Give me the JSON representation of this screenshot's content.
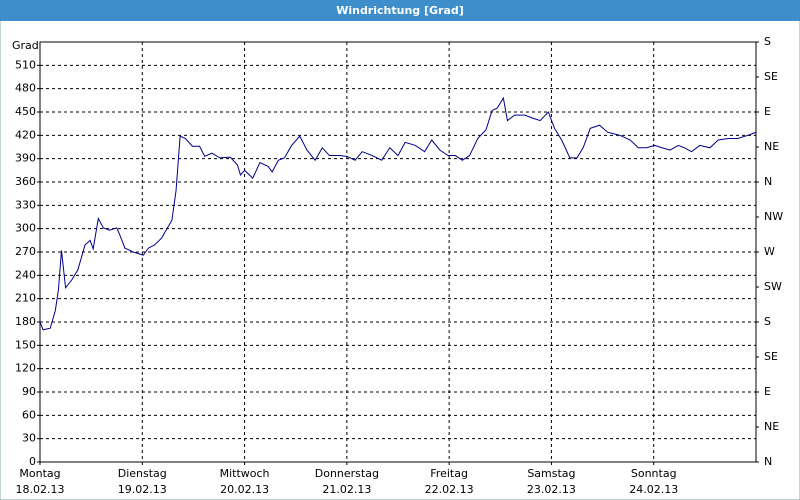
{
  "chart_data": {
    "type": "line",
    "title": "Windrichtung [Grad]",
    "ylabel": "Grad",
    "xlim": [
      0,
      7
    ],
    "xticks": [
      {
        "value": 0,
        "label": "Montag"
      },
      {
        "value": 1,
        "label": "Dienstag"
      },
      {
        "value": 2,
        "label": "Mittwoch"
      },
      {
        "value": 3,
        "label": "Donnerstag"
      },
      {
        "value": 4,
        "label": "Freitag"
      },
      {
        "value": 5,
        "label": "Samstag"
      },
      {
        "value": 6,
        "label": "Sonntag"
      }
    ],
    "xtick_dates": [
      "18.02.13",
      "19.02.13",
      "20.02.13",
      "21.02.13",
      "22.02.13",
      "23.02.13",
      "24.02.13"
    ],
    "ylim": [
      0,
      540
    ],
    "yticks": [
      0,
      30,
      60,
      90,
      120,
      150,
      180,
      210,
      240,
      270,
      300,
      330,
      360,
      390,
      420,
      450,
      480,
      510
    ],
    "y2lim": [
      0,
      540
    ],
    "y2ticks": [
      {
        "value": 0,
        "label": "N"
      },
      {
        "value": 45,
        "label": "NE"
      },
      {
        "value": 90,
        "label": "E"
      },
      {
        "value": 135,
        "label": "SE"
      },
      {
        "value": 180,
        "label": "S"
      },
      {
        "value": 225,
        "label": "SW"
      },
      {
        "value": 270,
        "label": "W"
      },
      {
        "value": 315,
        "label": "NW"
      },
      {
        "value": 360,
        "label": "N"
      },
      {
        "value": 405,
        "label": "NE"
      },
      {
        "value": 450,
        "label": "E"
      },
      {
        "value": 495,
        "label": "SE"
      },
      {
        "value": 540,
        "label": "S"
      }
    ],
    "grid": true,
    "color": "#00008b",
    "x": [
      0,
      0.03,
      0.1,
      0.15,
      0.18,
      0.21,
      0.25,
      0.31,
      0.37,
      0.44,
      0.49,
      0.52,
      0.57,
      0.62,
      0.68,
      0.75,
      0.78,
      0.83,
      0.91,
      1.01,
      1.06,
      1.12,
      1.19,
      1.22,
      1.29,
      1.33,
      1.37,
      1.42,
      1.49,
      1.56,
      1.61,
      1.68,
      1.76,
      1.86,
      1.93,
      1.96,
      2.0,
      2.08,
      2.15,
      2.23,
      2.27,
      2.33,
      2.39,
      2.46,
      2.54,
      2.61,
      2.69,
      2.76,
      2.83,
      2.93,
      3.0,
      3.08,
      3.15,
      3.25,
      3.34,
      3.42,
      3.5,
      3.57,
      3.67,
      3.76,
      3.83,
      3.91,
      3.99,
      4.06,
      4.13,
      4.2,
      4.28,
      4.36,
      4.42,
      4.47,
      4.53,
      4.57,
      4.64,
      4.74,
      4.82,
      4.89,
      4.97,
      5.03,
      5.1,
      5.18,
      5.25,
      5.31,
      5.38,
      5.47,
      5.55,
      5.67,
      5.77,
      5.85,
      5.93,
      6.01,
      6.08,
      6.16,
      6.24,
      6.3,
      6.37,
      6.45,
      6.55,
      6.63,
      6.73,
      6.82,
      6.92,
      7.0
    ],
    "values": [
      180,
      170,
      172,
      195,
      221,
      272,
      224,
      234,
      247,
      279,
      285,
      274,
      313,
      301,
      298,
      301,
      292,
      275,
      270,
      266,
      275,
      279,
      288,
      295,
      311,
      349,
      419,
      416,
      406,
      406,
      393,
      397,
      391,
      392,
      382,
      369,
      375,
      365,
      385,
      380,
      373,
      388,
      391,
      407,
      419,
      401,
      388,
      404,
      394,
      394,
      393,
      388,
      399,
      394,
      388,
      404,
      394,
      411,
      407,
      399,
      414,
      401,
      394,
      394,
      388,
      394,
      416,
      427,
      452,
      455,
      468,
      439,
      446,
      446,
      442,
      439,
      450,
      429,
      414,
      391,
      391,
      404,
      429,
      433,
      424,
      420,
      414,
      404,
      404,
      407,
      404,
      401,
      407,
      404,
      399,
      407,
      404,
      414,
      416,
      416,
      420,
      424
    ]
  }
}
